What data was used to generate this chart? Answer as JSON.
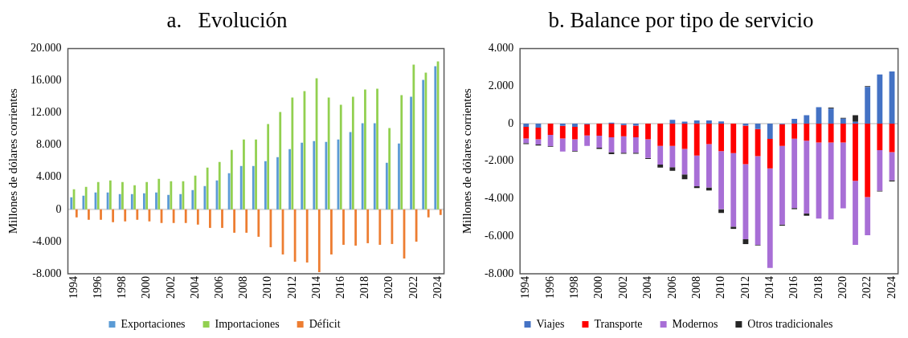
{
  "chart_data": [
    {
      "type": "bar",
      "title": "a.   Evolución",
      "ylabel": "Millones de dólares corrientes",
      "categories": [
        "1994",
        null,
        "1996",
        null,
        "1998",
        null,
        "2000",
        null,
        "2002",
        null,
        "2004",
        null,
        "2006",
        null,
        "2008",
        null,
        "2010",
        null,
        "2012",
        null,
        "2014",
        null,
        "2016",
        null,
        "2018",
        null,
        "2020",
        null,
        "2022",
        null,
        "2024"
      ],
      "series": [
        {
          "name": "Exportaciones",
          "color": "#5b9bd5",
          "values": [
            1500,
            1700,
            2100,
            2100,
            1900,
            1900,
            2000,
            2100,
            1800,
            1900,
            2400,
            2900,
            3600,
            4500,
            5400,
            5400,
            6000,
            6500,
            7500,
            8300,
            8500,
            8400,
            8700,
            9600,
            10700,
            10700,
            5800,
            8200,
            14000,
            16100,
            17800
          ]
        },
        {
          "name": "Importaciones",
          "color": "#92d050",
          "values": [
            2500,
            2800,
            3400,
            3600,
            3400,
            3000,
            3400,
            3800,
            3500,
            3500,
            4200,
            5200,
            5900,
            7400,
            8700,
            8700,
            10600,
            12100,
            13900,
            14700,
            16300,
            13900,
            13000,
            14000,
            14900,
            15000,
            10100,
            14200,
            18000,
            17000,
            18400
          ]
        },
        {
          "name": "Déficit",
          "color": "#ed7d31",
          "values": [
            -1000,
            -1300,
            -1300,
            -1600,
            -1500,
            -1300,
            -1500,
            -1700,
            -1700,
            -1700,
            -1900,
            -2300,
            -2300,
            -2900,
            -2900,
            -3400,
            -4700,
            -5600,
            -6500,
            -6600,
            -7800,
            -5600,
            -4400,
            -4500,
            -4200,
            -4400,
            -4300,
            -6100,
            -4000,
            -1000,
            -700
          ]
        }
      ],
      "ylim": [
        -8000,
        20000
      ],
      "yticks": [
        {
          "value": -8000,
          "label": "-8.000"
        },
        {
          "value": -4000,
          "label": "-4.000"
        },
        0,
        {
          "value": 4000,
          "label": "4.000"
        },
        {
          "value": 8000,
          "label": "8.000"
        },
        {
          "value": 12000,
          "label": "12.000"
        },
        {
          "value": 16000,
          "label": "16.000"
        },
        {
          "value": 20000,
          "label": "20.000"
        }
      ],
      "ref_lines": [
        {
          "axis": "y",
          "value": 0,
          "color": "#d9d9d9"
        }
      ],
      "grid": false,
      "legend": "bottom"
    },
    {
      "type": "bar",
      "title": "b. Balance por tipo de servicio",
      "ylabel": "Millones de dólares corrientes",
      "stacked": true,
      "categories": [
        "1994",
        null,
        "1996",
        null,
        "1998",
        null,
        "2000",
        null,
        "2002",
        null,
        "2004",
        null,
        "2006",
        null,
        "2008",
        null,
        "2010",
        null,
        "2012",
        null,
        "2014",
        null,
        "2016",
        null,
        "2018",
        null,
        "2020",
        null,
        "2022",
        null,
        "2024"
      ],
      "series": [
        {
          "name": "Viajes",
          "color": "#4472c4",
          "values": [
            -170,
            -220,
            0,
            -120,
            -170,
            -30,
            0,
            50,
            -80,
            -110,
            0,
            0,
            200,
            100,
            170,
            170,
            120,
            0,
            -110,
            -290,
            -820,
            -30,
            250,
            450,
            870,
            800,
            260,
            90,
            1950,
            2620,
            2780
          ]
        },
        {
          "name": "Transporte",
          "color": "#ff0000",
          "values": [
            -620,
            -620,
            -600,
            -670,
            -670,
            -600,
            -640,
            -730,
            -600,
            -620,
            -840,
            -1190,
            -1190,
            -1350,
            -1700,
            -1090,
            -1470,
            -1570,
            -2050,
            -1440,
            -1570,
            -1160,
            -810,
            -910,
            -1010,
            -1010,
            -1010,
            -3050,
            -3920,
            -1410,
            -1520
          ]
        },
        {
          "name": "Modernos",
          "color": "#a86fd6",
          "values": [
            -250,
            -280,
            -600,
            -700,
            -620,
            -560,
            -650,
            -790,
            -870,
            -820,
            -990,
            -990,
            -1130,
            -1360,
            -1640,
            -2310,
            -3090,
            -3920,
            -4000,
            -4730,
            -5300,
            -4190,
            -3690,
            -3880,
            -4050,
            -4090,
            -3500,
            -3410,
            -2030,
            -2160,
            -1500
          ]
        },
        {
          "name": "Otros tradicionales",
          "color": "#262626",
          "values": [
            -50,
            -50,
            -30,
            null,
            -30,
            null,
            -60,
            -110,
            -60,
            -60,
            -50,
            -160,
            -190,
            -250,
            -90,
            -160,
            -200,
            -120,
            -260,
            -30,
            null,
            -60,
            -60,
            -120,
            null,
            50,
            50,
            360,
            50,
            -50,
            -60
          ]
        }
      ],
      "ylim": [
        -8000,
        4000
      ],
      "yticks": [
        {
          "value": -8000,
          "label": "-8.000"
        },
        {
          "value": -6000,
          "label": "-6.000"
        },
        {
          "value": -4000,
          "label": "-4.000"
        },
        {
          "value": -2000,
          "label": "-2.000"
        },
        0,
        {
          "value": 2000,
          "label": "2.000"
        },
        {
          "value": 4000,
          "label": "4.000"
        }
      ],
      "ref_lines": [
        {
          "axis": "y",
          "value": 0,
          "color": "#d9d9d9"
        }
      ],
      "grid": false,
      "legend": "bottom"
    }
  ]
}
